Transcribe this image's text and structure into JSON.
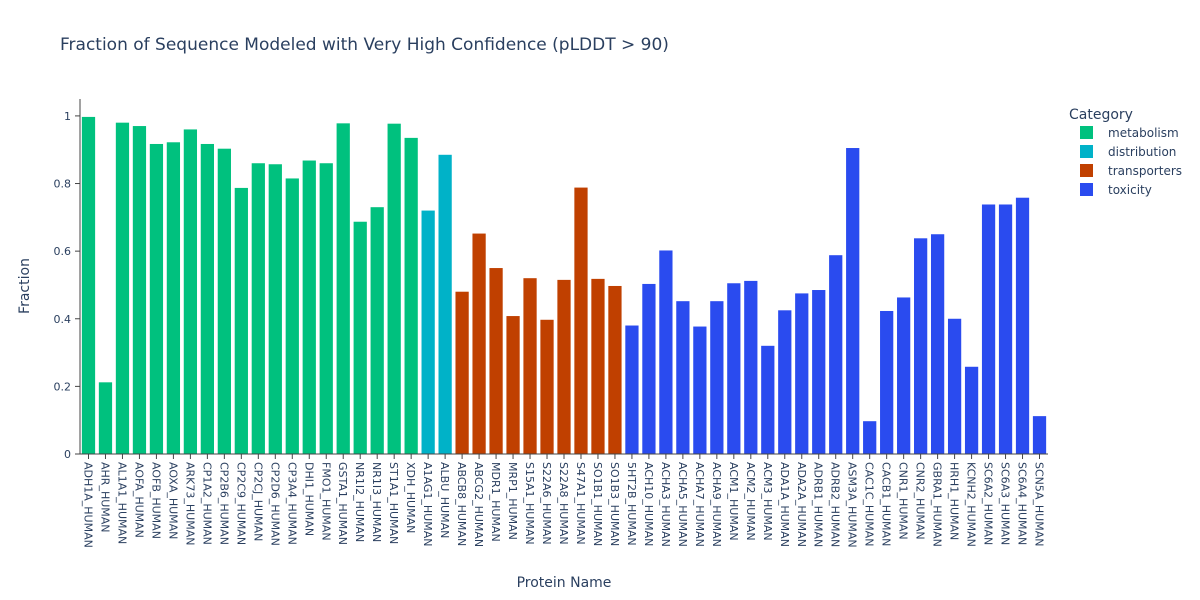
{
  "chart_data": {
    "type": "bar",
    "title": "Fraction of Sequence Modeled with Very High Confidence (pLDDT > 90)",
    "xlabel": "Protein Name",
    "ylabel": "Fraction",
    "ylim": [
      0,
      1.05
    ],
    "yticks": [
      0,
      0.2,
      0.4,
      0.6,
      0.8,
      1
    ],
    "ytick_labels": [
      "0",
      "0.2",
      "0.4",
      "0.6",
      "0.8",
      "1"
    ],
    "grid": false,
    "legend": {
      "title": "Category",
      "placement": "top-right",
      "entries": [
        {
          "name": "metabolism",
          "color": "#00c17e"
        },
        {
          "name": "distribution",
          "color": "#00b2c8"
        },
        {
          "name": "transporters",
          "color": "#c04000"
        },
        {
          "name": "toxicity",
          "color": "#2a4bef"
        }
      ]
    },
    "categories": [
      "ADH1A_HUMAN",
      "AHR_HUMAN",
      "AL1A1_HUMAN",
      "AOFA_HUMAN",
      "AOFB_HUMAN",
      "AOXA_HUMAN",
      "ARK73_HUMAN",
      "CP1A2_HUMAN",
      "CP2B6_HUMAN",
      "CP2C9_HUMAN",
      "CP2CJ_HUMAN",
      "CP2D6_HUMAN",
      "CP3A4_HUMAN",
      "DHI1_HUMAN",
      "FMO1_HUMAN",
      "GSTA1_HUMAN",
      "NR1I2_HUMAN",
      "NR1I3_HUMAN",
      "ST1A1_HUMAN",
      "XDH_HUMAN",
      "A1AG1_HUMAN",
      "ALBU_HUMAN",
      "ABCB8_HUMAN",
      "ABCG2_HUMAN",
      "MDR1_HUMAN",
      "MRP1_HUMAN",
      "S15A1_HUMAN",
      "S22A6_HUMAN",
      "S22A8_HUMAN",
      "S47A1_HUMAN",
      "SO1B1_HUMAN",
      "SO1B3_HUMAN",
      "5HT2B_HUMAN",
      "ACH10_HUMAN",
      "ACHA3_HUMAN",
      "ACHA5_HUMAN",
      "ACHA7_HUMAN",
      "ACHA9_HUMAN",
      "ACM1_HUMAN",
      "ACM2_HUMAN",
      "ACM3_HUMAN",
      "ADA1A_HUMAN",
      "ADA2A_HUMAN",
      "ADRB1_HUMAN",
      "ADRB2_HUMAN",
      "ASM3A_HUMAN",
      "CAC1C_HUMAN",
      "CACB1_HUMAN",
      "CNR1_HUMAN",
      "CNR2_HUMAN",
      "GBRA1_HUMAN",
      "HRH1_HUMAN",
      "KCNH2_HUMAN",
      "SC6A2_HUMAN",
      "SC6A3_HUMAN",
      "SC6A4_HUMAN",
      "SCN5A_HUMAN"
    ],
    "values": [
      0.997,
      0.212,
      0.98,
      0.97,
      0.917,
      0.922,
      0.96,
      0.917,
      0.903,
      0.787,
      0.86,
      0.857,
      0.815,
      0.868,
      0.86,
      0.978,
      0.687,
      0.73,
      0.977,
      0.935,
      0.72,
      0.885,
      0.48,
      0.652,
      0.55,
      0.408,
      0.52,
      0.397,
      0.515,
      0.788,
      0.518,
      0.497,
      0.38,
      0.503,
      0.602,
      0.452,
      0.377,
      0.452,
      0.505,
      0.512,
      0.32,
      0.425,
      0.475,
      0.485,
      0.588,
      0.905,
      0.097,
      0.423,
      0.463,
      0.638,
      0.65,
      0.4,
      0.258,
      0.738,
      0.738,
      0.758,
      0.112
    ],
    "series_category": [
      "metabolism",
      "metabolism",
      "metabolism",
      "metabolism",
      "metabolism",
      "metabolism",
      "metabolism",
      "metabolism",
      "metabolism",
      "metabolism",
      "metabolism",
      "metabolism",
      "metabolism",
      "metabolism",
      "metabolism",
      "metabolism",
      "metabolism",
      "metabolism",
      "metabolism",
      "metabolism",
      "distribution",
      "distribution",
      "transporters",
      "transporters",
      "transporters",
      "transporters",
      "transporters",
      "transporters",
      "transporters",
      "transporters",
      "transporters",
      "transporters",
      "toxicity",
      "toxicity",
      "toxicity",
      "toxicity",
      "toxicity",
      "toxicity",
      "toxicity",
      "toxicity",
      "toxicity",
      "toxicity",
      "toxicity",
      "toxicity",
      "toxicity",
      "toxicity",
      "toxicity",
      "toxicity",
      "toxicity",
      "toxicity",
      "toxicity",
      "toxicity",
      "toxicity",
      "toxicity",
      "toxicity",
      "toxicity",
      "toxicity"
    ]
  }
}
